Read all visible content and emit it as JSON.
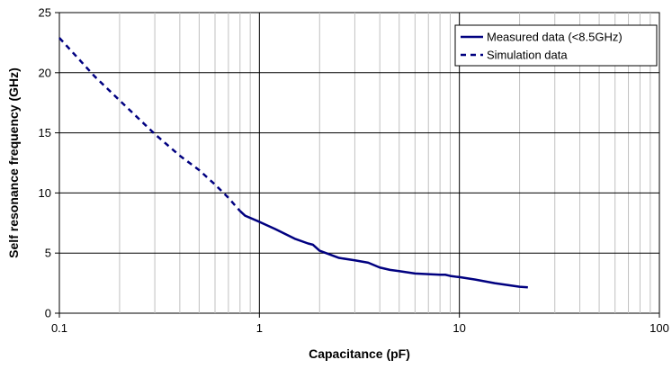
{
  "chart_data": {
    "type": "line",
    "title": "",
    "xlabel": "Capacitance (pF)",
    "ylabel": "Self resonance frequency (GHz)",
    "xscale": "log",
    "xlim": [
      0.1,
      100
    ],
    "ylim": [
      0,
      25
    ],
    "x_ticks": [
      0.1,
      1,
      10,
      100
    ],
    "x_tick_labels": [
      "0.1",
      "1",
      "10",
      "100"
    ],
    "y_ticks": [
      0,
      5,
      10,
      15,
      20,
      25
    ],
    "y_tick_labels": [
      "0",
      "5",
      "10",
      "15",
      "20",
      "25"
    ],
    "grid": true,
    "legend_position": "top-right",
    "series": [
      {
        "name": "Measured data (<8.5GHz)",
        "line_style": "solid",
        "color": "#000080",
        "x": [
          0.8,
          0.85,
          1.0,
          1.2,
          1.5,
          1.75,
          1.85,
          2.0,
          2.5,
          3.0,
          3.5,
          4.0,
          4.5,
          5.0,
          6.0,
          7.0,
          8.0,
          8.5,
          9.0,
          10.0,
          12.0,
          15.0,
          20.0,
          22.0
        ],
        "y": [
          8.5,
          8.1,
          7.6,
          7.0,
          6.2,
          5.8,
          5.7,
          5.2,
          4.6,
          4.4,
          4.2,
          3.8,
          3.6,
          3.5,
          3.3,
          3.25,
          3.2,
          3.2,
          3.1,
          3.0,
          2.8,
          2.5,
          2.2,
          2.15
        ]
      },
      {
        "name": "Simulation data",
        "line_style": "dashed",
        "color": "#000080",
        "x": [
          0.1,
          0.15,
          0.2,
          0.3,
          0.4,
          0.5,
          0.6,
          0.7,
          0.8
        ],
        "y": [
          22.9,
          19.7,
          17.7,
          14.9,
          13.1,
          11.9,
          10.7,
          9.6,
          8.5
        ]
      }
    ]
  }
}
